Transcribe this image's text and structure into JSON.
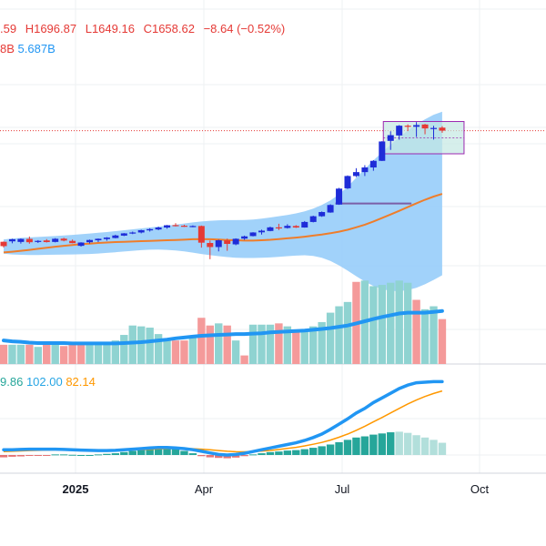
{
  "legend": {
    "open_tail": ".59",
    "high": "H1696.87",
    "low": "L1649.16",
    "close": "C1658.62",
    "change": "−8.64 (−0.52%)",
    "vol_tail": "8B",
    "vol_ma": "5.687B",
    "macd_tail": "9.86",
    "macd_signal": "102.00",
    "macd_hist": "82.14"
  },
  "x_axis": [
    "2025",
    "Apr",
    "Jul",
    "Oct"
  ],
  "colors": {
    "up": "#1e2cd8",
    "down": "#e53935",
    "band": "#90caf9",
    "ma": "#ef7d2a",
    "vol_up": "#8fd3d1",
    "vol_down": "#f49a9a",
    "vol_ma": "#2196f3",
    "hist_up": "#26a69a",
    "hist_down": "#e57373",
    "macd": "#2196f3",
    "signal": "#ff9800",
    "highlight": "#c5e8e3",
    "highlight_border": "#9c27b0"
  },
  "chart_data": {
    "type": "line",
    "title": "",
    "candles": [
      {
        "o": 1.4,
        "h": 1.6,
        "l": -2.4,
        "c": -1.5
      },
      {
        "o": 1.7,
        "h": 3.4,
        "l": 0.4,
        "c": 3.1
      },
      {
        "o": 1.3,
        "h": 3.6,
        "l": 0.2,
        "c": 3.3
      },
      {
        "o": 3.3,
        "h": 4.9,
        "l": 0.1,
        "c": 1.1
      },
      {
        "o": 1.3,
        "h": 2.5,
        "l": 0.6,
        "c": 2.0
      },
      {
        "o": 2.3,
        "h": 3.2,
        "l": 0.9,
        "c": 1.2
      },
      {
        "o": 1.3,
        "h": 3.8,
        "l": 1.0,
        "c": 3.4
      },
      {
        "o": 3.5,
        "h": 4.1,
        "l": 1.7,
        "c": 2.2
      },
      {
        "o": 2.0,
        "h": 2.9,
        "l": 0.4,
        "c": 0.5
      },
      {
        "o": -1.3,
        "h": 1.1,
        "l": -1.8,
        "c": 0.9
      },
      {
        "o": 1.1,
        "h": 2.9,
        "l": 0.2,
        "c": 2.6
      },
      {
        "o": 2.4,
        "h": 3.6,
        "l": 1.2,
        "c": 3.4
      },
      {
        "o": 3.2,
        "h": 4.5,
        "l": 2.1,
        "c": 4.2
      },
      {
        "o": 3.9,
        "h": 6.1,
        "l": 3.7,
        "c": 5.6
      },
      {
        "o": 5.5,
        "h": 7.2,
        "l": 5.2,
        "c": 7.0
      },
      {
        "o": 7.0,
        "h": 8.2,
        "l": 6.5,
        "c": 7.6
      },
      {
        "o": 7.6,
        "h": 9.4,
        "l": 7.0,
        "c": 9.1
      },
      {
        "o": 9.0,
        "h": 10.4,
        "l": 8.2,
        "c": 9.8
      },
      {
        "o": 9.6,
        "h": 11.5,
        "l": 9.1,
        "c": 10.9
      },
      {
        "o": 10.9,
        "h": 12.6,
        "l": 10.1,
        "c": 12.4
      },
      {
        "o": 12.5,
        "h": 13.8,
        "l": 11.6,
        "c": 12.3
      },
      {
        "o": 12.1,
        "h": 12.7,
        "l": 11.3,
        "c": 11.7
      },
      {
        "o": 11.7,
        "h": 12.3,
        "l": 11.1,
        "c": 11.9
      },
      {
        "o": 11.9,
        "h": 12.2,
        "l": -2.5,
        "c": 0.8
      },
      {
        "o": 0.6,
        "h": 2.2,
        "l": -10.2,
        "c": -2.1
      },
      {
        "o": -2.1,
        "h": 2.8,
        "l": -5.0,
        "c": 2.4
      },
      {
        "o": 2.3,
        "h": 3.5,
        "l": -4.6,
        "c": 0.0
      },
      {
        "o": -0.3,
        "h": 3.7,
        "l": -0.9,
        "c": 3.4
      },
      {
        "o": 3.5,
        "h": 5.5,
        "l": 2.7,
        "c": 5.0
      },
      {
        "o": 5.2,
        "h": 7.8,
        "l": 5.0,
        "c": 7.6
      },
      {
        "o": 7.7,
        "h": 9.5,
        "l": 6.2,
        "c": 8.8
      },
      {
        "o": 8.6,
        "h": 11.5,
        "l": 8.4,
        "c": 11.0
      },
      {
        "o": 11.0,
        "h": 13.4,
        "l": 9.2,
        "c": 10.5
      },
      {
        "o": 10.6,
        "h": 13.1,
        "l": 10.2,
        "c": 12.0
      },
      {
        "o": 11.9,
        "h": 12.5,
        "l": 10.6,
        "c": 10.9
      },
      {
        "o": 10.9,
        "h": 15.2,
        "l": 10.8,
        "c": 14.6
      },
      {
        "o": 14.6,
        "h": 18.8,
        "l": 14.3,
        "c": 18.4
      },
      {
        "o": 18.4,
        "h": 21.6,
        "l": 18.0,
        "c": 21.2
      },
      {
        "o": 20.9,
        "h": 26.4,
        "l": 20.7,
        "c": 25.9
      },
      {
        "o": 26.2,
        "h": 37.3,
        "l": 26.0,
        "c": 36.8
      },
      {
        "o": 37.0,
        "h": 45.6,
        "l": 36.6,
        "c": 45.2
      },
      {
        "o": 45.2,
        "h": 50.4,
        "l": 44.5,
        "c": 47.8
      },
      {
        "o": 47.8,
        "h": 52.4,
        "l": 45.2,
        "c": 50.9
      },
      {
        "o": 50.9,
        "h": 55.8,
        "l": 48.7,
        "c": 55.3
      },
      {
        "o": 55.3,
        "h": 68.4,
        "l": 55.2,
        "c": 68.2
      },
      {
        "o": 68.6,
        "h": 75.0,
        "l": 62.6,
        "c": 72.4
      },
      {
        "o": 72.2,
        "h": 79.1,
        "l": 69.4,
        "c": 78.7
      },
      {
        "o": 78.7,
        "h": 79.6,
        "l": 75.1,
        "c": 78.2
      },
      {
        "o": 78.0,
        "h": 81.1,
        "l": 71.2,
        "c": 79.1
      },
      {
        "o": 79.5,
        "h": 79.9,
        "l": 73.0,
        "c": 76.9
      },
      {
        "o": 76.5,
        "h": 78.6,
        "l": 69.5,
        "c": 77.2
      },
      {
        "o": 77.4,
        "h": 78.4,
        "l": 74.0,
        "c": 75.4
      }
    ],
    "moving_average": [
      -5.7,
      -5.2,
      -4.6,
      -4.0,
      -3.3,
      -2.6,
      -1.9,
      -1.3,
      -0.7,
      -0.2,
      0.2,
      0.6,
      0.9,
      1.2,
      1.4,
      1.6,
      1.8,
      2.0,
      2.2,
      2.4,
      2.6,
      2.8,
      3.1,
      3.2,
      3.1,
      2.9,
      2.6,
      2.4,
      2.2,
      2.2,
      2.4,
      2.7,
      3.2,
      3.7,
      4.2,
      4.8,
      5.5,
      6.2,
      7.1,
      8.1,
      9.4,
      11.0,
      12.8,
      14.9,
      17.2,
      19.6,
      22.0,
      24.5,
      27.0,
      29.4,
      31.5,
      33.3
    ],
    "band_upper": [
      3.0,
      3.6,
      4.0,
      4.3,
      4.6,
      4.9,
      5.2,
      5.6,
      6.0,
      6.4,
      6.9,
      7.4,
      7.9,
      8.5,
      9.1,
      9.7,
      10.3,
      10.9,
      11.5,
      12.1,
      12.8,
      13.6,
      14.3,
      14.9,
      15.4,
      15.7,
      15.8,
      15.8,
      15.9,
      16.2,
      16.8,
      17.6,
      18.4,
      19.3,
      20.3,
      21.7,
      23.5,
      25.9,
      29.0,
      33.0,
      38.0,
      44.0,
      50.0,
      55.5,
      61.0,
      66.0,
      71.0,
      75.5,
      79.5,
      83.0,
      86.0,
      88.0
    ],
    "band_lower": [
      -6.5,
      -7.0,
      -7.3,
      -7.4,
      -7.4,
      -7.3,
      -7.2,
      -7.1,
      -7.0,
      -6.9,
      -6.7,
      -6.4,
      -6.0,
      -5.6,
      -5.1,
      -4.6,
      -4.2,
      -3.9,
      -3.8,
      -4.0,
      -4.4,
      -5.0,
      -5.8,
      -6.7,
      -7.5,
      -8.2,
      -8.8,
      -9.2,
      -9.4,
      -9.4,
      -9.3,
      -9.0,
      -8.6,
      -8.2,
      -7.8,
      -7.6,
      -8.0,
      -9.3,
      -11.4,
      -14.3,
      -17.8,
      -21.5,
      -25.1,
      -28.0,
      -30.1,
      -31.3,
      -31.5,
      -30.8,
      -29.3,
      -26.9,
      -24.0,
      -20.9
    ],
    "support_level": 26.9,
    "volume": [
      {
        "v": 0.45,
        "d": "down"
      },
      {
        "v": 0.45,
        "d": "up"
      },
      {
        "v": 0.45,
        "d": "up"
      },
      {
        "v": 0.45,
        "d": "down"
      },
      {
        "v": 0.4,
        "d": "up"
      },
      {
        "v": 0.45,
        "d": "down"
      },
      {
        "v": 0.5,
        "d": "up"
      },
      {
        "v": 0.42,
        "d": "down"
      },
      {
        "v": 0.45,
        "d": "down"
      },
      {
        "v": 0.45,
        "d": "down"
      },
      {
        "v": 0.48,
        "d": "up"
      },
      {
        "v": 0.48,
        "d": "up"
      },
      {
        "v": 0.48,
        "d": "up"
      },
      {
        "v": 0.55,
        "d": "up"
      },
      {
        "v": 0.68,
        "d": "up"
      },
      {
        "v": 0.9,
        "d": "up"
      },
      {
        "v": 0.88,
        "d": "up"
      },
      {
        "v": 0.85,
        "d": "up"
      },
      {
        "v": 0.7,
        "d": "up"
      },
      {
        "v": 0.6,
        "d": "up"
      },
      {
        "v": 0.55,
        "d": "down"
      },
      {
        "v": 0.55,
        "d": "down"
      },
      {
        "v": 0.65,
        "d": "up"
      },
      {
        "v": 1.08,
        "d": "down"
      },
      {
        "v": 0.9,
        "d": "down"
      },
      {
        "v": 0.95,
        "d": "up"
      },
      {
        "v": 0.9,
        "d": "down"
      },
      {
        "v": 0.55,
        "d": "up"
      },
      {
        "v": 0.2,
        "d": "down"
      },
      {
        "v": 0.92,
        "d": "up"
      },
      {
        "v": 0.92,
        "d": "up"
      },
      {
        "v": 0.92,
        "d": "up"
      },
      {
        "v": 0.95,
        "d": "down"
      },
      {
        "v": 0.88,
        "d": "up"
      },
      {
        "v": 0.75,
        "d": "down"
      },
      {
        "v": 0.75,
        "d": "up"
      },
      {
        "v": 0.88,
        "d": "up"
      },
      {
        "v": 0.98,
        "d": "up"
      },
      {
        "v": 1.2,
        "d": "up"
      },
      {
        "v": 1.35,
        "d": "up"
      },
      {
        "v": 1.45,
        "d": "up"
      },
      {
        "v": 1.92,
        "d": "down"
      },
      {
        "v": 1.95,
        "d": "up"
      },
      {
        "v": 1.82,
        "d": "up"
      },
      {
        "v": 1.85,
        "d": "up"
      },
      {
        "v": 1.9,
        "d": "up"
      },
      {
        "v": 1.95,
        "d": "up"
      },
      {
        "v": 1.9,
        "d": "up"
      },
      {
        "v": 1.5,
        "d": "down"
      },
      {
        "v": 1.28,
        "d": "up"
      },
      {
        "v": 1.35,
        "d": "up"
      },
      {
        "v": 1.05,
        "d": "down"
      }
    ],
    "volume_ma": [
      0.55,
      0.53,
      0.52,
      0.5,
      0.49,
      0.49,
      0.49,
      0.49,
      0.48,
      0.48,
      0.48,
      0.48,
      0.48,
      0.48,
      0.49,
      0.5,
      0.51,
      0.53,
      0.55,
      0.57,
      0.6,
      0.62,
      0.64,
      0.66,
      0.67,
      0.68,
      0.69,
      0.7,
      0.7,
      0.71,
      0.72,
      0.74,
      0.75,
      0.76,
      0.77,
      0.78,
      0.8,
      0.82,
      0.84,
      0.87,
      0.9,
      0.95,
      1.0,
      1.05,
      1.1,
      1.14,
      1.18,
      1.2,
      1.2,
      1.2,
      1.22,
      1.24
    ],
    "macd": [
      0.45,
      0.45,
      0.48,
      0.5,
      0.5,
      0.5,
      0.5,
      0.48,
      0.45,
      0.42,
      0.4,
      0.38,
      0.38,
      0.4,
      0.45,
      0.5,
      0.55,
      0.6,
      0.65,
      0.65,
      0.6,
      0.55,
      0.45,
      0.32,
      0.18,
      0.05,
      0.0,
      0.05,
      0.15,
      0.3,
      0.45,
      0.6,
      0.75,
      0.9,
      1.05,
      1.25,
      1.5,
      1.8,
      2.2,
      2.65,
      3.1,
      3.6,
      4.0,
      4.5,
      4.9,
      5.3,
      5.7,
      6.0,
      6.2,
      6.25,
      6.3,
      6.3
    ],
    "signal": [
      0.3,
      0.32,
      0.35,
      0.38,
      0.4,
      0.42,
      0.44,
      0.45,
      0.45,
      0.44,
      0.43,
      0.42,
      0.41,
      0.41,
      0.42,
      0.44,
      0.46,
      0.49,
      0.52,
      0.55,
      0.56,
      0.56,
      0.54,
      0.5,
      0.45,
      0.38,
      0.32,
      0.28,
      0.27,
      0.29,
      0.33,
      0.39,
      0.47,
      0.56,
      0.66,
      0.78,
      0.92,
      1.08,
      1.28,
      1.52,
      1.8,
      2.12,
      2.47,
      2.84,
      3.22,
      3.61,
      4.0,
      4.38,
      4.72,
      5.02,
      5.28,
      5.5
    ],
    "histogram": [
      -0.2,
      -0.15,
      -0.12,
      -0.08,
      -0.08,
      -0.05,
      0.05,
      0.05,
      0.02,
      0.0,
      0.0,
      0.05,
      0.1,
      0.15,
      0.25,
      0.35,
      0.45,
      0.6,
      0.72,
      0.65,
      0.55,
      0.35,
      0.15,
      -0.1,
      -0.2,
      -0.25,
      -0.28,
      -0.22,
      -0.1,
      0.05,
      0.15,
      0.25,
      0.3,
      0.38,
      0.42,
      0.5,
      0.62,
      0.75,
      0.9,
      1.1,
      1.3,
      1.5,
      1.6,
      1.75,
      1.85,
      1.95,
      2.0,
      1.9,
      1.7,
      1.5,
      1.3,
      1.05
    ]
  }
}
